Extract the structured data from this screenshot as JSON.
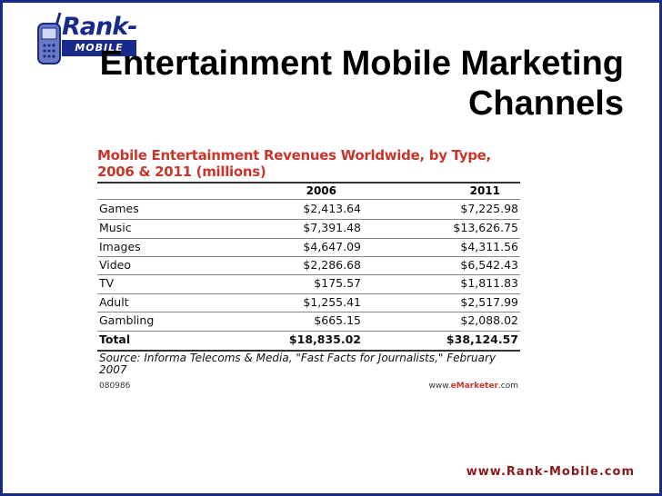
{
  "logo": {
    "name": "Rank-",
    "sub": "MOBILE"
  },
  "slide": {
    "title_line1": "Entertainment Mobile Marketing",
    "title_line2": "Channels",
    "url": "www.Rank-Mobile.com"
  },
  "figure": {
    "title": "Mobile Entertainment Revenues Worldwide, by Type, 2006 & 2011 (millions)",
    "columns": [
      "2006",
      "2011"
    ],
    "rows": [
      {
        "label": "Games",
        "v2006": "$2,413.64",
        "v2011": "$7,225.98"
      },
      {
        "label": "Music",
        "v2006": "$7,391.48",
        "v2011": "$13,626.75"
      },
      {
        "label": "Images",
        "v2006": "$4,647.09",
        "v2011": "$4,311.56"
      },
      {
        "label": "Video",
        "v2006": "$2,286.68",
        "v2011": "$6,542.43"
      },
      {
        "label": "TV",
        "v2006": "$175.57",
        "v2011": "$1,811.83"
      },
      {
        "label": "Adult",
        "v2006": "$1,255.41",
        "v2011": "$2,517.99"
      },
      {
        "label": "Gambling",
        "v2006": "$665.15",
        "v2011": "$2,088.02"
      }
    ],
    "total": {
      "label": "Total",
      "v2006": "$18,835.02",
      "v2011": "$38,124.57"
    },
    "source": "Source: Informa Telecoms & Media, \"Fast Facts for Journalists,\" February 2007",
    "id": "080986",
    "site_prefix": "www.",
    "site_brand": "eMarketer",
    "site_suffix": ".com"
  }
}
